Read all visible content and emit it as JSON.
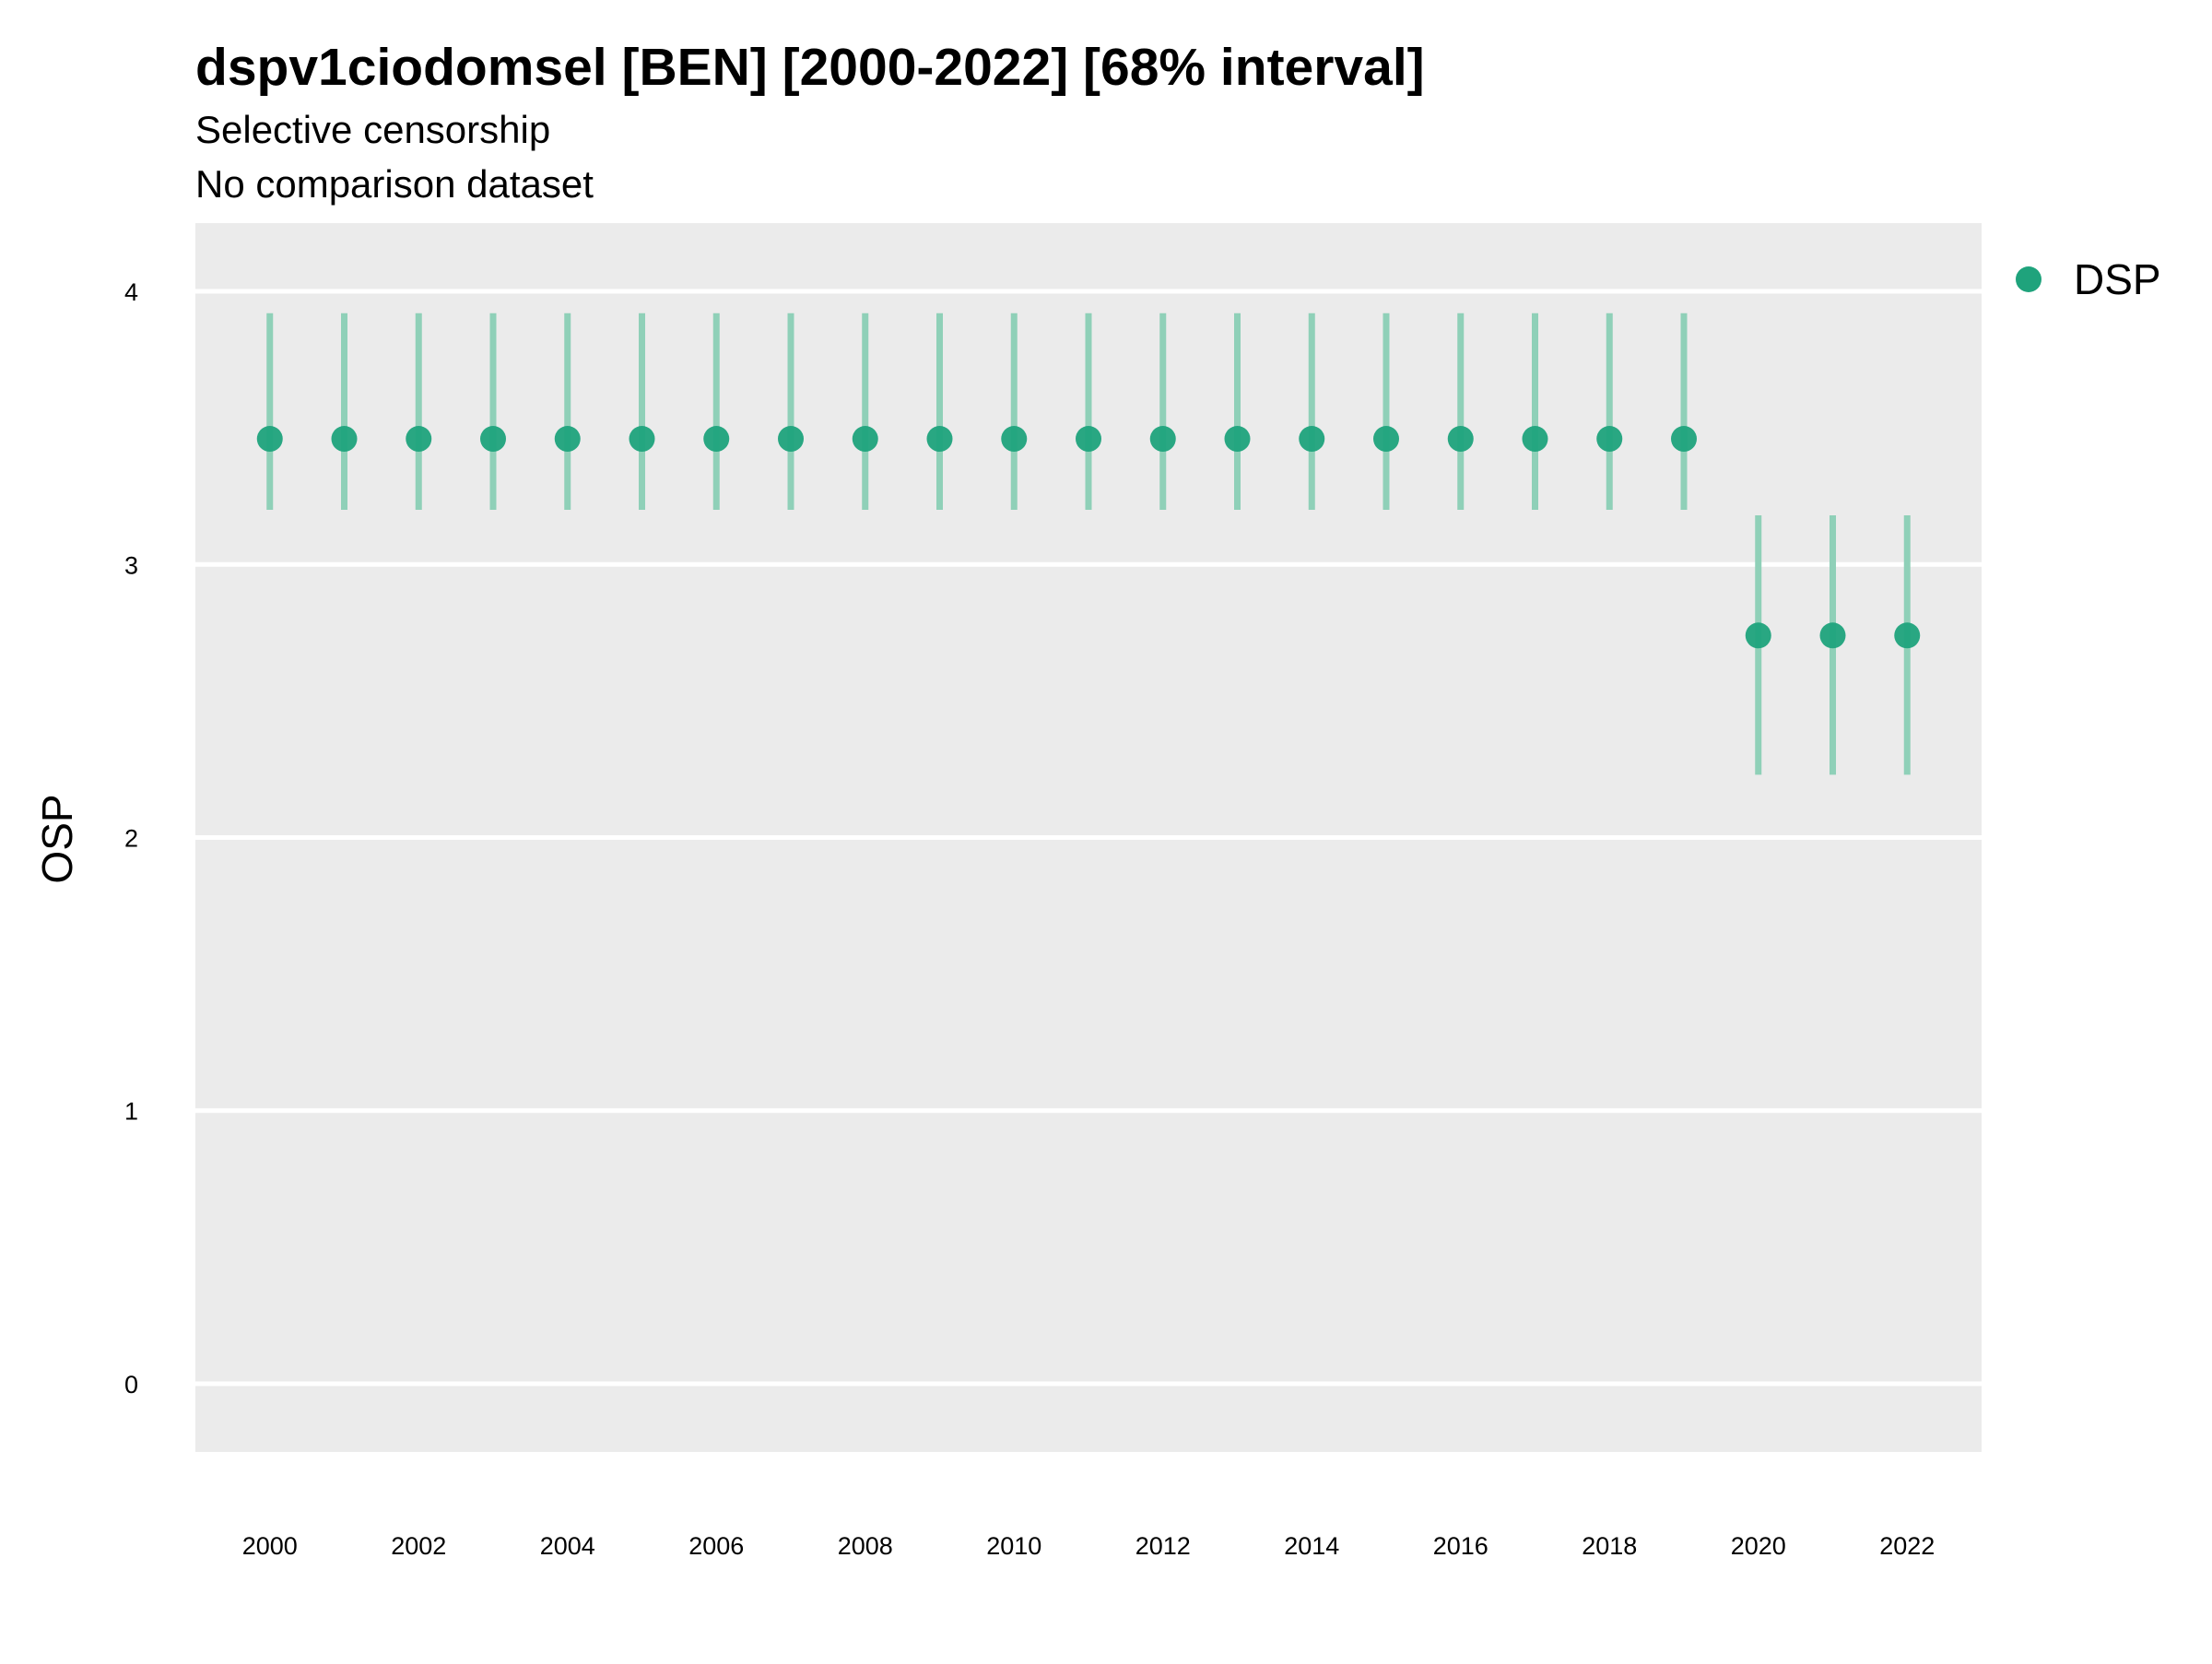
{
  "chart_data": {
    "type": "scatter",
    "title": "dspv1ciodomsel [BEN] [2000-2022] [68% interval]",
    "subtitle": "Selective censorship",
    "caption_line": "No comparison dataset",
    "xlabel": "",
    "ylabel": "OSP",
    "x_ticks": [
      "2000",
      "2002",
      "2004",
      "2006",
      "2008",
      "2010",
      "2012",
      "2014",
      "2016",
      "2018",
      "2020",
      "2022"
    ],
    "y_ticks": [
      "0",
      "1",
      "2",
      "3",
      "4"
    ],
    "xlim": [
      1999,
      2023
    ],
    "ylim": [
      -0.25,
      4.25
    ],
    "grid": true,
    "legend_position": "right",
    "colors": {
      "point": "#1fa37c",
      "interval": "#8fd0b8",
      "panel": "#ebebeb",
      "grid": "#ffffff"
    },
    "series": [
      {
        "name": "DSP",
        "x": [
          2000,
          2001,
          2002,
          2003,
          2004,
          2005,
          2006,
          2007,
          2008,
          2009,
          2010,
          2011,
          2012,
          2013,
          2014,
          2015,
          2016,
          2017,
          2018,
          2019,
          2020,
          2021,
          2022
        ],
        "y": [
          3.46,
          3.46,
          3.46,
          3.46,
          3.46,
          3.46,
          3.46,
          3.46,
          3.46,
          3.46,
          3.46,
          3.46,
          3.46,
          3.46,
          3.46,
          3.46,
          3.46,
          3.46,
          3.46,
          3.46,
          2.74,
          2.74,
          2.74
        ],
        "lower": [
          3.2,
          3.2,
          3.2,
          3.2,
          3.2,
          3.2,
          3.2,
          3.2,
          3.2,
          3.2,
          3.2,
          3.2,
          3.2,
          3.2,
          3.2,
          3.2,
          3.2,
          3.2,
          3.2,
          3.2,
          2.23,
          2.23,
          2.23
        ],
        "upper": [
          3.92,
          3.92,
          3.92,
          3.92,
          3.92,
          3.92,
          3.92,
          3.92,
          3.92,
          3.92,
          3.92,
          3.92,
          3.92,
          3.92,
          3.92,
          3.92,
          3.92,
          3.92,
          3.92,
          3.92,
          3.18,
          3.18,
          3.18
        ]
      }
    ]
  }
}
